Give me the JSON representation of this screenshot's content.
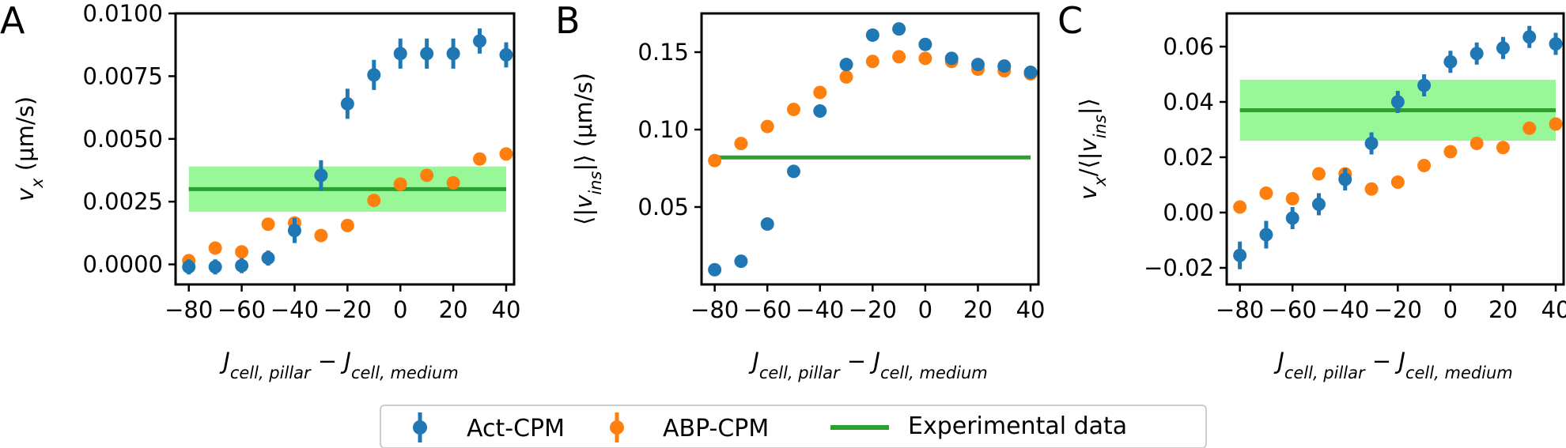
{
  "legend": {
    "items": [
      {
        "label": "Act-CPM",
        "color": "#1f77b4",
        "kind": "errorbar-marker"
      },
      {
        "label": "ABP-CPM",
        "color": "#ff7f0e",
        "kind": "errorbar-marker"
      },
      {
        "label": "Experimental data",
        "color": "#2ca02c",
        "kind": "line"
      }
    ],
    "placement": "bottom-center"
  },
  "colors": {
    "act": "#1f77b4",
    "abp": "#ff7f0e",
    "experimental_line": "#2ca02c",
    "experimental_band": "#98f898"
  },
  "chart_data": [
    {
      "panel": "A",
      "type": "scatter",
      "xlabel": {
        "parts": [
          [
            "J",
            "i"
          ],
          [
            "cell, pillar",
            "sub-i"
          ],
          [
            " − ",
            "n"
          ],
          [
            "J",
            "i"
          ],
          [
            "cell, medium",
            "sub-i"
          ]
        ]
      },
      "ylabel": {
        "parts": [
          [
            "v",
            "i"
          ],
          [
            "x",
            "sub-i"
          ],
          [
            " (μm/s)",
            "n"
          ]
        ]
      },
      "xlim": [
        -85,
        43
      ],
      "ylim": [
        -0.0008,
        0.01
      ],
      "xticks": [
        "−80",
        "−60",
        "−40",
        "−20",
        "0",
        "20",
        "40"
      ],
      "xtick_values": [
        -80,
        -60,
        -40,
        -20,
        0,
        20,
        40
      ],
      "yticks": [
        "0.0000",
        "0.0025",
        "0.0050",
        "0.0075",
        "0.0100"
      ],
      "ytick_values": [
        0,
        0.0025,
        0.005,
        0.0075,
        0.01
      ],
      "x": [
        -80,
        -70,
        -60,
        -50,
        -40,
        -30,
        -20,
        -10,
        0,
        10,
        20,
        30,
        40
      ],
      "series": [
        {
          "name": "Act-CPM",
          "color": "#1f77b4",
          "values": [
            -0.0001,
            -0.0001,
            -5e-05,
            0.00025,
            0.00135,
            0.00355,
            0.0064,
            0.00755,
            0.0084,
            0.0084,
            0.0084,
            0.0089,
            0.00835
          ],
          "errors": [
            0.0003,
            0.0003,
            0.0003,
            0.0003,
            0.0005,
            0.0006,
            0.0006,
            0.0006,
            0.0006,
            0.0006,
            0.0006,
            0.0005,
            0.0005
          ]
        },
        {
          "name": "ABP-CPM",
          "color": "#ff7f0e",
          "values": [
            0.00015,
            0.00065,
            0.0005,
            0.0016,
            0.00165,
            0.00115,
            0.00155,
            0.00255,
            0.0032,
            0.00355,
            0.00325,
            0.0042,
            0.0044
          ]
        },
        {
          "name": "Experimental data",
          "color": "#2ca02c",
          "kind": "band",
          "value": 0.003,
          "low": 0.0021,
          "high": 0.0039,
          "xrange": [
            -80,
            40
          ]
        }
      ],
      "grid": false
    },
    {
      "panel": "B",
      "type": "scatter",
      "xlabel": {
        "parts": [
          [
            "J",
            "i"
          ],
          [
            "cell, pillar",
            "sub-i"
          ],
          [
            " − ",
            "n"
          ],
          [
            "J",
            "i"
          ],
          [
            "cell, medium",
            "sub-i"
          ]
        ]
      },
      "ylabel": {
        "parts": [
          [
            "⟨|",
            "n"
          ],
          [
            "v",
            "i"
          ],
          [
            "ins",
            "sub-i"
          ],
          [
            "|⟩ (μm/s)",
            "n"
          ]
        ]
      },
      "xlim": [
        -85,
        43
      ],
      "ylim": [
        0.0,
        0.175
      ],
      "xticks": [
        "−80",
        "−60",
        "−40",
        "−20",
        "0",
        "20",
        "40"
      ],
      "xtick_values": [
        -80,
        -60,
        -40,
        -20,
        0,
        20,
        40
      ],
      "yticks": [
        "0.05",
        "0.10",
        "0.15"
      ],
      "ytick_values": [
        0.05,
        0.1,
        0.15
      ],
      "x": [
        -80,
        -70,
        -60,
        -50,
        -40,
        -30,
        -20,
        -10,
        0,
        10,
        20,
        30,
        40
      ],
      "series": [
        {
          "name": "Act-CPM",
          "color": "#1f77b4",
          "values": [
            0.0095,
            0.015,
            0.039,
            0.073,
            0.112,
            0.142,
            0.161,
            0.165,
            0.155,
            0.146,
            0.142,
            0.141,
            0.137
          ]
        },
        {
          "name": "ABP-CPM",
          "color": "#ff7f0e",
          "values": [
            0.08,
            0.091,
            0.102,
            0.113,
            0.124,
            0.134,
            0.144,
            0.147,
            0.146,
            0.144,
            0.139,
            0.138,
            0.136
          ]
        },
        {
          "name": "Experimental data",
          "color": "#2ca02c",
          "kind": "line",
          "value": 0.082,
          "xrange": [
            -80,
            40
          ]
        }
      ],
      "grid": false
    },
    {
      "panel": "C",
      "type": "scatter",
      "xlabel": {
        "parts": [
          [
            "J",
            "i"
          ],
          [
            "cell, pillar",
            "sub-i"
          ],
          [
            " − ",
            "n"
          ],
          [
            "J",
            "i"
          ],
          [
            "cell, medium",
            "sub-i"
          ]
        ]
      },
      "ylabel": {
        "parts": [
          [
            "v",
            "i"
          ],
          [
            "x",
            "sub-i"
          ],
          [
            "/⟨|",
            "n"
          ],
          [
            "v",
            "i"
          ],
          [
            "ins",
            "sub-i"
          ],
          [
            "|⟩",
            "n"
          ]
        ]
      },
      "xlim": [
        -85,
        43
      ],
      "ylim": [
        -0.026,
        0.072
      ],
      "xticks": [
        "−80",
        "−60",
        "−40",
        "−20",
        "0",
        "20",
        "40"
      ],
      "xtick_values": [
        -80,
        -60,
        -40,
        -20,
        0,
        20,
        40
      ],
      "yticks": [
        "−0.02",
        "0.00",
        "0.02",
        "0.04",
        "0.06"
      ],
      "ytick_values": [
        -0.02,
        0,
        0.02,
        0.04,
        0.06
      ],
      "x": [
        -80,
        -70,
        -60,
        -50,
        -40,
        -30,
        -20,
        -10,
        0,
        10,
        20,
        30,
        40
      ],
      "series": [
        {
          "name": "Act-CPM",
          "color": "#1f77b4",
          "values": [
            -0.0155,
            -0.008,
            -0.002,
            0.003,
            0.012,
            0.025,
            0.04,
            0.046,
            0.0545,
            0.0575,
            0.0595,
            0.0635,
            0.061
          ],
          "errors": [
            0.005,
            0.005,
            0.004,
            0.004,
            0.004,
            0.004,
            0.004,
            0.004,
            0.004,
            0.004,
            0.004,
            0.004,
            0.004
          ]
        },
        {
          "name": "ABP-CPM",
          "color": "#ff7f0e",
          "values": [
            0.002,
            0.007,
            0.005,
            0.014,
            0.014,
            0.0085,
            0.011,
            0.017,
            0.022,
            0.025,
            0.0235,
            0.0305,
            0.032
          ]
        },
        {
          "name": "Experimental data",
          "color": "#2ca02c",
          "kind": "band",
          "value": 0.037,
          "low": 0.026,
          "high": 0.048,
          "xrange": [
            -80,
            40
          ]
        }
      ],
      "grid": false
    }
  ]
}
